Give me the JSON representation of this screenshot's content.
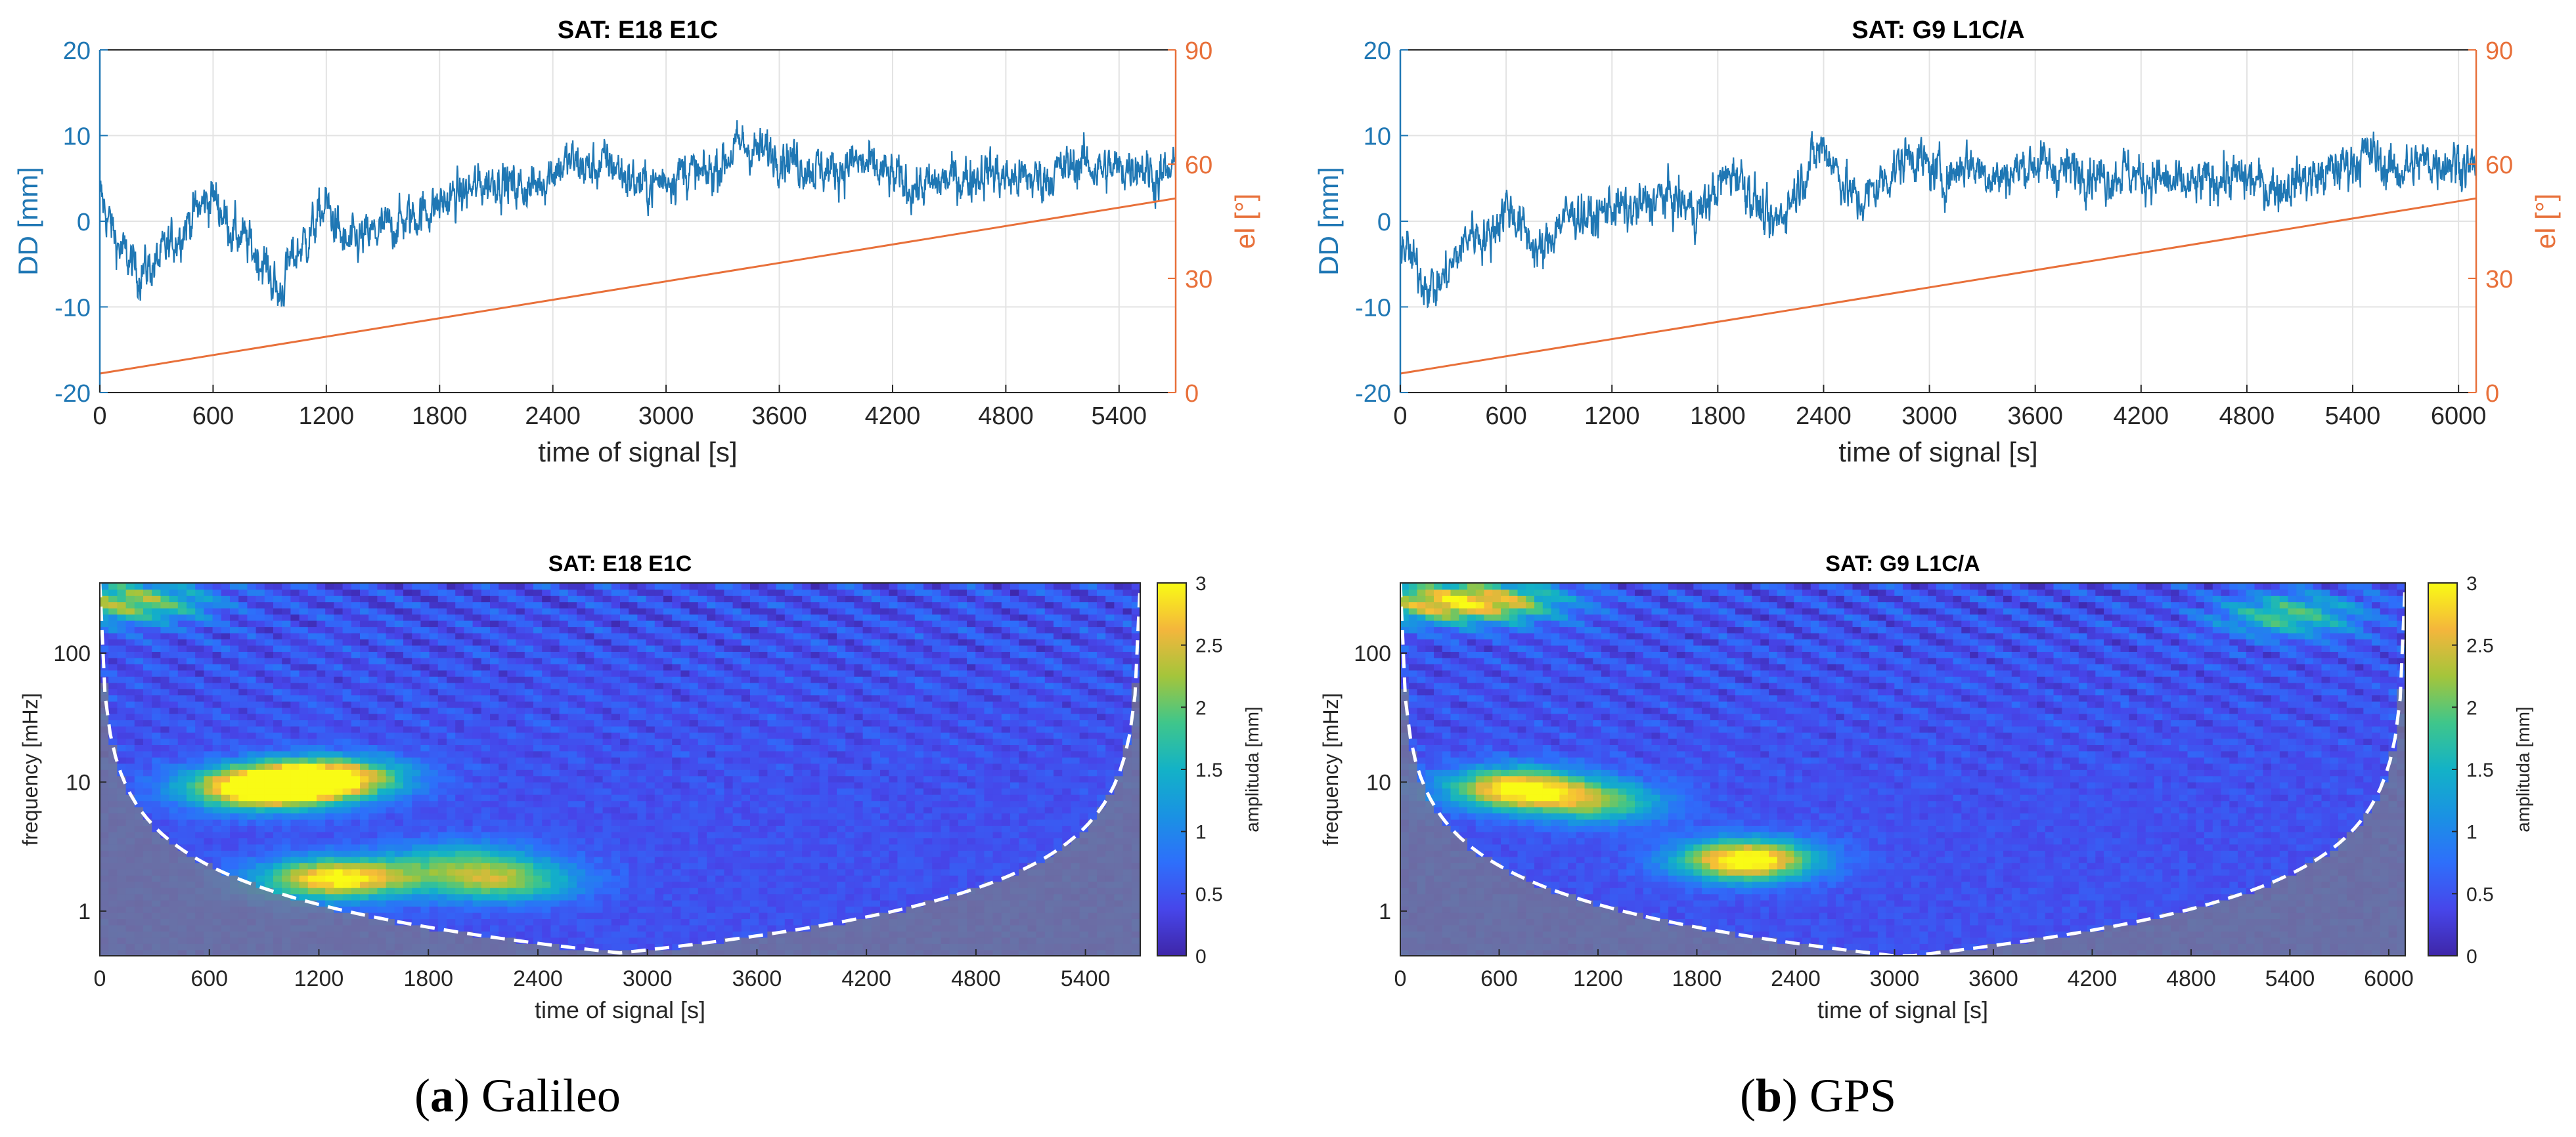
{
  "chart_data": [
    {
      "type": "line",
      "panel": "a-top",
      "title": "SAT: E18   E1C",
      "xlabel": "time of signal [s]",
      "ylabel": "DD [mm]",
      "y2label": "el [°]",
      "xlim": [
        0,
        5700
      ],
      "ylim": [
        -20,
        20
      ],
      "y2lim": [
        0,
        90
      ],
      "xticks": [
        0,
        600,
        1200,
        1800,
        2400,
        3000,
        3600,
        4200,
        4800,
        5400
      ],
      "yticks": [
        -20,
        -10,
        0,
        10,
        20
      ],
      "y2ticks": [
        0,
        30,
        60,
        90
      ],
      "grid": true,
      "colors": {
        "dd": "#1f77b4",
        "el": "#e8703a"
      },
      "series": [
        {
          "axis": "left",
          "x": [
            0,
            100,
            200,
            300,
            400,
            500,
            600,
            700,
            800,
            900,
            950,
            1000,
            1100,
            1200,
            1300,
            1400,
            1500,
            1600,
            1700,
            1800,
            1900,
            2000,
            2100,
            2200,
            2300,
            2400,
            2500,
            2600,
            2700,
            2800,
            2900,
            3000,
            3100,
            3200,
            3300,
            3400,
            3500,
            3600,
            3700,
            3800,
            3900,
            4000,
            4100,
            4200,
            4300,
            4400,
            4500,
            4600,
            4700,
            4800,
            4900,
            5000,
            5100,
            5200,
            5300,
            5400,
            5500,
            5600,
            5700
          ],
          "values": [
            3,
            -3,
            -6,
            -5,
            -2,
            1,
            3,
            -1,
            -3,
            -6,
            -9,
            -5,
            -2,
            2,
            -3,
            -2,
            -1,
            0,
            1,
            2,
            3,
            4,
            5,
            4,
            4,
            6,
            7,
            6,
            7,
            5,
            4,
            5,
            6,
            5,
            7,
            9,
            8,
            8,
            7,
            6,
            6,
            7,
            6,
            5,
            4,
            4,
            5,
            5,
            6,
            5,
            5,
            5,
            6,
            7,
            6,
            6,
            7,
            5,
            6
          ]
        },
        {
          "axis": "right",
          "x": [
            0,
            5700
          ],
          "values": [
            5,
            51
          ]
        }
      ]
    },
    {
      "type": "line",
      "panel": "b-top",
      "title": "SAT: G9   L1C/A",
      "xlabel": "time of signal [s]",
      "ylabel": "DD [mm]",
      "y2label": "el [°]",
      "xlim": [
        0,
        6100
      ],
      "ylim": [
        -20,
        20
      ],
      "y2lim": [
        0,
        90
      ],
      "xticks": [
        0,
        600,
        1200,
        1800,
        2400,
        3000,
        3600,
        4200,
        4800,
        5400,
        6000
      ],
      "yticks": [
        -20,
        -10,
        0,
        10,
        20
      ],
      "y2ticks": [
        0,
        30,
        60,
        90
      ],
      "grid": true,
      "colors": {
        "dd": "#1f77b4",
        "el": "#e8703a"
      },
      "series": [
        {
          "axis": "left",
          "x": [
            0,
            100,
            200,
            300,
            400,
            500,
            600,
            700,
            800,
            900,
            1000,
            1100,
            1200,
            1300,
            1400,
            1500,
            1600,
            1700,
            1800,
            1900,
            2000,
            2100,
            2200,
            2300,
            2400,
            2500,
            2600,
            2700,
            2800,
            2900,
            3000,
            3100,
            3200,
            3300,
            3400,
            3500,
            3600,
            3700,
            3800,
            3900,
            4000,
            4100,
            4200,
            4300,
            4400,
            4500,
            4600,
            4700,
            4800,
            4900,
            5000,
            5100,
            5200,
            5300,
            5400,
            5500,
            5600,
            5700,
            5800,
            5900,
            6000,
            6100
          ],
          "values": [
            -2,
            -6,
            -8,
            -5,
            -1,
            -2,
            2,
            -1,
            -4,
            0,
            1,
            0,
            2,
            1,
            2,
            3,
            2,
            1,
            4,
            6,
            3,
            -1,
            2,
            6,
            9,
            5,
            2,
            4,
            6,
            8,
            6,
            5,
            7,
            6,
            5,
            6,
            7,
            6,
            6,
            6,
            5,
            6,
            5,
            5,
            4,
            4,
            5,
            5,
            5,
            4,
            4,
            5,
            5,
            6,
            7,
            8,
            6,
            6,
            7,
            7,
            7,
            6
          ]
        },
        {
          "axis": "right",
          "x": [
            0,
            6100
          ],
          "values": [
            5,
            51
          ]
        }
      ]
    },
    {
      "type": "heatmap",
      "panel": "a-bottom",
      "title": "SAT: E18   E1C",
      "xlabel": "time of signal [s]",
      "ylabel": "frequency [mHz]",
      "colorbar_label": "amplituda [mm]",
      "xlim": [
        0,
        5700
      ],
      "ylim_log": [
        0.45,
        350
      ],
      "xticks": [
        0,
        600,
        1200,
        1800,
        2400,
        3000,
        3600,
        4200,
        4800,
        5400
      ],
      "yticks": [
        1,
        10,
        100
      ],
      "colorbar_ticks": [
        0,
        0.5,
        1,
        1.5,
        2,
        2.5,
        3
      ],
      "crange": [
        0,
        3
      ],
      "hotspots": [
        {
          "t": 900,
          "f": 9,
          "amp": 3.0
        },
        {
          "t": 1250,
          "f": 11,
          "amp": 2.4
        },
        {
          "t": 1300,
          "f": 1.8,
          "amp": 2.6
        },
        {
          "t": 2200,
          "f": 1.7,
          "amp": 1.6
        },
        {
          "t": 150,
          "f": 250,
          "amp": 1.8
        },
        {
          "t": 2000,
          "f": 2.5,
          "amp": 1.0
        }
      ]
    },
    {
      "type": "heatmap",
      "panel": "b-bottom",
      "title": "SAT: G9   L1C/A",
      "xlabel": "time of signal [s]",
      "ylabel": "frequency [mHz]",
      "colorbar_label": "amplituda [mm]",
      "xlim": [
        0,
        6100
      ],
      "ylim_log": [
        0.45,
        350
      ],
      "xticks": [
        0,
        600,
        1200,
        1800,
        2400,
        3000,
        3600,
        4200,
        4800,
        5400,
        6000
      ],
      "yticks": [
        1,
        10,
        100
      ],
      "colorbar_ticks": [
        0,
        0.5,
        1,
        1.5,
        2,
        2.5,
        3
      ],
      "crange": [
        0,
        3
      ],
      "hotspots": [
        {
          "t": 2100,
          "f": 2.5,
          "amp": 2.8
        },
        {
          "t": 700,
          "f": 9,
          "amp": 2.6
        },
        {
          "t": 600,
          "f": 250,
          "amp": 1.7
        },
        {
          "t": 150,
          "f": 250,
          "amp": 1.6
        },
        {
          "t": 5400,
          "f": 200,
          "amp": 1.4
        },
        {
          "t": 1200,
          "f": 7,
          "amp": 1.5
        }
      ]
    }
  ],
  "captions": [
    {
      "letter": "a",
      "text": ") Galileo",
      "open": "("
    },
    {
      "letter": "b",
      "text": ") GPS",
      "open": "("
    }
  ]
}
